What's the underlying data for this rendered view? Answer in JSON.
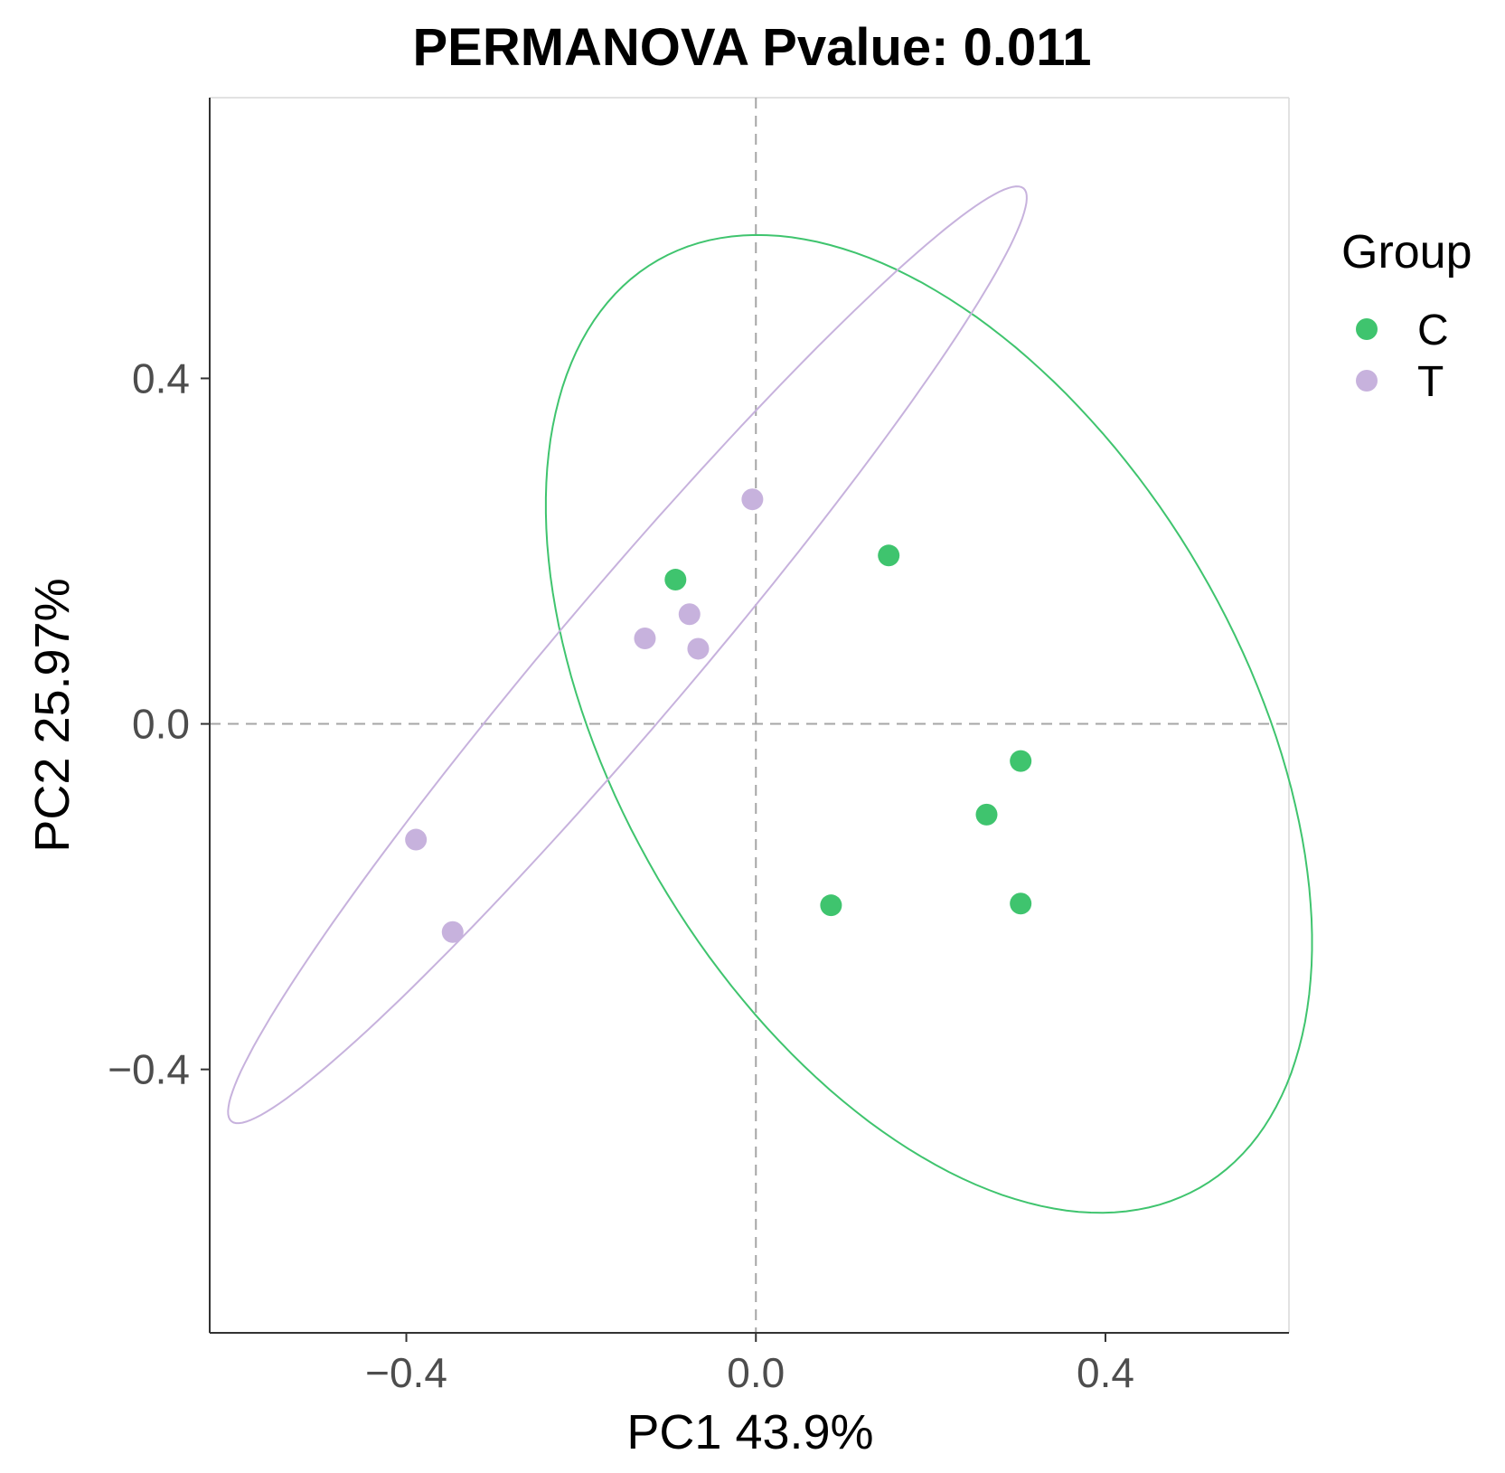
{
  "chart_data": {
    "type": "scatter",
    "title": "PERMANOVA Pvalue: 0.011",
    "xlabel": "PC1 43.9%",
    "ylabel": "PC2 25.97%",
    "xlim": [
      -0.625,
      0.61
    ],
    "ylim": [
      -0.705,
      0.725
    ],
    "x_ticks": [
      -0.4,
      0.0,
      0.4
    ],
    "x_tick_labels": [
      "−0.4",
      "0.0",
      "0.4"
    ],
    "y_ticks": [
      -0.4,
      0.0,
      0.4
    ],
    "y_tick_labels": [
      "−0.4",
      "0.0",
      "0.4"
    ],
    "reference_lines": {
      "x": 0,
      "y": 0,
      "style": "dashed",
      "color": "#a6a6a6"
    },
    "legend": {
      "title": "Group",
      "placement": "right"
    },
    "series": [
      {
        "name": "C",
        "color": "#3fc46e",
        "points": [
          {
            "x": 0.152,
            "y": 0.195
          },
          {
            "x": -0.092,
            "y": 0.167
          },
          {
            "x": 0.303,
            "y": -0.043
          },
          {
            "x": 0.264,
            "y": -0.105
          },
          {
            "x": 0.086,
            "y": -0.21
          },
          {
            "x": 0.303,
            "y": -0.208
          }
        ],
        "ellipse": {
          "cx": 0.198,
          "cy": 0.0,
          "rx": 0.62,
          "ry": 0.358,
          "angle_deg": -60
        }
      },
      {
        "name": "T",
        "color": "#c7b2dd",
        "points": [
          {
            "x": -0.004,
            "y": 0.26
          },
          {
            "x": -0.076,
            "y": 0.127
          },
          {
            "x": -0.127,
            "y": 0.099
          },
          {
            "x": -0.066,
            "y": 0.087
          },
          {
            "x": -0.389,
            "y": -0.134
          },
          {
            "x": -0.347,
            "y": -0.241
          }
        ],
        "ellipse": {
          "cx": -0.147,
          "cy": 0.08,
          "rx": 0.705,
          "ry": 0.077,
          "angle_deg": 50
        }
      }
    ]
  }
}
